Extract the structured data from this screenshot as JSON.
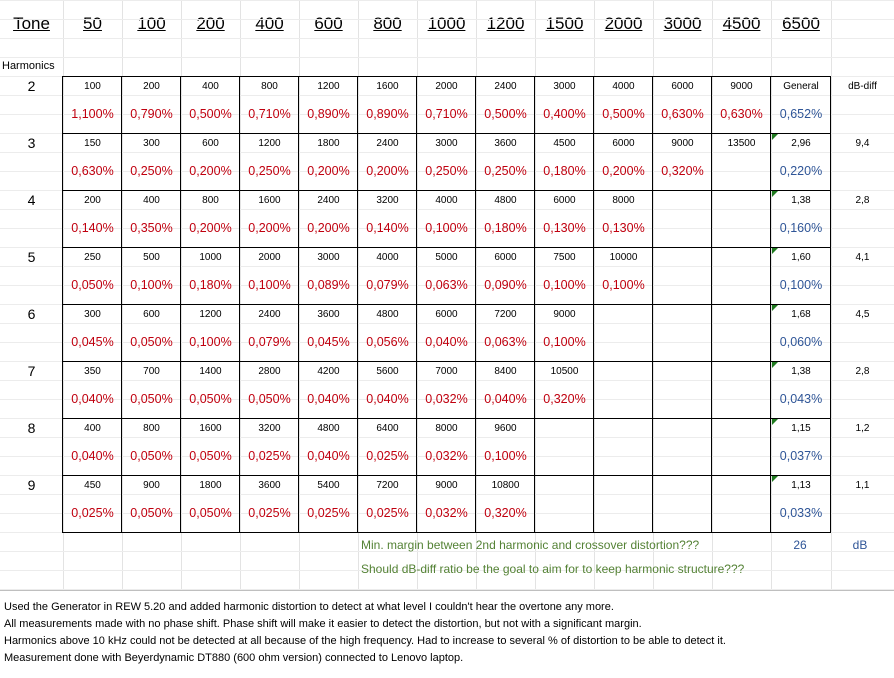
{
  "header": {
    "tone_label": "Tone",
    "tones": [
      "50",
      "100",
      "200",
      "400",
      "600",
      "800",
      "1000",
      "1200",
      "1500",
      "2000",
      "3000",
      "4500",
      "6500"
    ]
  },
  "harmonics_label": "Harmonics",
  "rows": [
    {
      "h": "2",
      "freqs": [
        "100",
        "200",
        "400",
        "800",
        "1200",
        "1600",
        "2000",
        "2400",
        "3000",
        "4000",
        "6000",
        "9000"
      ],
      "general_label": "General",
      "pcts": [
        "1,100%",
        "0,790%",
        "0,500%",
        "0,710%",
        "0,890%",
        "0,890%",
        "0,710%",
        "0,500%",
        "0,400%",
        "0,500%",
        "0,630%",
        "0,630%"
      ],
      "general": "0,652%",
      "diff": "dB-diff"
    },
    {
      "h": "3",
      "freqs": [
        "150",
        "300",
        "600",
        "1200",
        "1800",
        "2400",
        "3000",
        "3600",
        "4500",
        "6000",
        "9000",
        "13500"
      ],
      "general_label": "2,96",
      "pcts": [
        "0,630%",
        "0,250%",
        "0,200%",
        "0,250%",
        "0,200%",
        "0,200%",
        "0,250%",
        "0,250%",
        "0,180%",
        "0,200%",
        "0,320%",
        ""
      ],
      "general": "0,220%",
      "diff": "9,4"
    },
    {
      "h": "4",
      "freqs": [
        "200",
        "400",
        "800",
        "1600",
        "2400",
        "3200",
        "4000",
        "4800",
        "6000",
        "8000",
        "",
        ""
      ],
      "general_label": "1,38",
      "pcts": [
        "0,140%",
        "0,350%",
        "0,200%",
        "0,200%",
        "0,200%",
        "0,140%",
        "0,100%",
        "0,180%",
        "0,130%",
        "0,130%",
        "",
        ""
      ],
      "general": "0,160%",
      "diff": "2,8"
    },
    {
      "h": "5",
      "freqs": [
        "250",
        "500",
        "1000",
        "2000",
        "3000",
        "4000",
        "5000",
        "6000",
        "7500",
        "10000",
        "",
        ""
      ],
      "general_label": "1,60",
      "pcts": [
        "0,050%",
        "0,100%",
        "0,180%",
        "0,100%",
        "0,089%",
        "0,079%",
        "0,063%",
        "0,090%",
        "0,100%",
        "0,100%",
        "",
        ""
      ],
      "general": "0,100%",
      "diff": "4,1"
    },
    {
      "h": "6",
      "freqs": [
        "300",
        "600",
        "1200",
        "2400",
        "3600",
        "4800",
        "6000",
        "7200",
        "9000",
        "",
        "",
        ""
      ],
      "general_label": "1,68",
      "pcts": [
        "0,045%",
        "0,050%",
        "0,100%",
        "0,079%",
        "0,045%",
        "0,056%",
        "0,040%",
        "0,063%",
        "0,100%",
        "",
        "",
        ""
      ],
      "general": "0,060%",
      "diff": "4,5"
    },
    {
      "h": "7",
      "freqs": [
        "350",
        "700",
        "1400",
        "2800",
        "4200",
        "5600",
        "7000",
        "8400",
        "10500",
        "",
        "",
        ""
      ],
      "general_label": "1,38",
      "pcts": [
        "0,040%",
        "0,050%",
        "0,050%",
        "0,050%",
        "0,040%",
        "0,040%",
        "0,032%",
        "0,040%",
        "0,320%",
        "",
        "",
        ""
      ],
      "general": "0,043%",
      "diff": "2,8"
    },
    {
      "h": "8",
      "freqs": [
        "400",
        "800",
        "1600",
        "3200",
        "4800",
        "6400",
        "8000",
        "9600",
        "",
        "",
        "",
        ""
      ],
      "general_label": "1,15",
      "pcts": [
        "0,040%",
        "0,050%",
        "0,050%",
        "0,025%",
        "0,040%",
        "0,025%",
        "0,032%",
        "0,100%",
        "",
        "",
        "",
        ""
      ],
      "general": "0,037%",
      "diff": "1,2"
    },
    {
      "h": "9",
      "freqs": [
        "450",
        "900",
        "1800",
        "3600",
        "5400",
        "7200",
        "9000",
        "10800",
        "",
        "",
        "",
        ""
      ],
      "general_label": "1,13",
      "pcts": [
        "0,025%",
        "0,050%",
        "0,050%",
        "0,025%",
        "0,025%",
        "0,025%",
        "0,032%",
        "0,320%",
        "",
        "",
        "",
        ""
      ],
      "general": "0,033%",
      "diff": "1,1"
    }
  ],
  "margin_line": {
    "text": "Min. margin between 2nd harmonic and crossover distortion???",
    "value": "26",
    "unit": "dB"
  },
  "question_line": "Should dB-diff ratio be the goal to aim for to keep harmonic structure???",
  "notes": [
    "Used the Generator in REW 5.20 and added harmonic distortion to detect at what level I couldn't hear the overtone any more.",
    "All measurements made with no phase shift. Phase shift will make it easier to detect the distortion, but not with a significant margin.",
    "Harmonics above 10 kHz could not be detected at all because of the high frequency. Had to increase to several % of distortion to be able to detect it.",
    "Measurement done with Beyerdynamic DT880 (600 ohm version) connected to Lenovo laptop."
  ],
  "colors": {
    "pct": "#c0000f",
    "general": "#2f5597",
    "green_text": "#548235",
    "gridline": "#d9d9d9"
  }
}
